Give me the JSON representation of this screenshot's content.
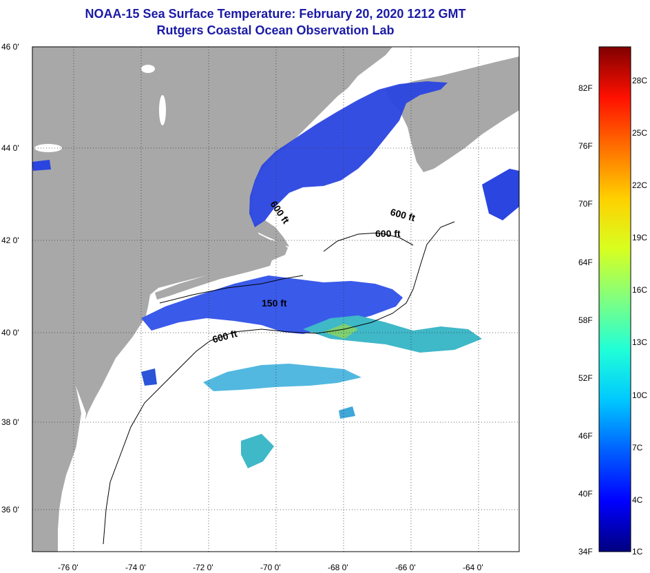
{
  "header": {
    "title_line1": "NOAA-15 Sea Surface Temperature:  February 20, 2020 1212 GMT",
    "title_line2": "Rutgers Coastal Ocean Observation Lab"
  },
  "map": {
    "land_color": "#a8a8a8",
    "ocean_color": "#ffffff",
    "latitude_labels": [
      "46 0'",
      "44 0'",
      "42 0'",
      "40 0'",
      "38 0'",
      "36 0'"
    ],
    "longitude_labels": [
      "-76 0'",
      "-74 0'",
      "-72 0'",
      "-70 0'",
      "-68 0'",
      "-66 0'",
      "-64 0'"
    ],
    "contour_labels": [
      {
        "id": "c600a",
        "text": "600 ft"
      },
      {
        "id": "c600b",
        "text": "600 ft"
      },
      {
        "id": "c600c",
        "text": "600 ft"
      },
      {
        "id": "c150",
        "text": "150 ft"
      },
      {
        "id": "c600d",
        "text": "600 ft"
      }
    ]
  },
  "colorbar": {
    "fahrenheit_labels": [
      "82F",
      "76F",
      "70F",
      "64F",
      "58F",
      "52F",
      "46F",
      "40F",
      "34F"
    ],
    "celsius_labels": [
      "28C",
      "25C",
      "22C",
      "19C",
      "16C",
      "13C",
      "10C",
      "7C",
      "4C",
      "1C"
    ],
    "gradient_stops": [
      "#00007f",
      "#0000ff",
      "#0060ff",
      "#00c8ff",
      "#20ffd8",
      "#80ff80",
      "#d8ff20",
      "#ffd000",
      "#ff7000",
      "#ff1000",
      "#800000"
    ]
  }
}
